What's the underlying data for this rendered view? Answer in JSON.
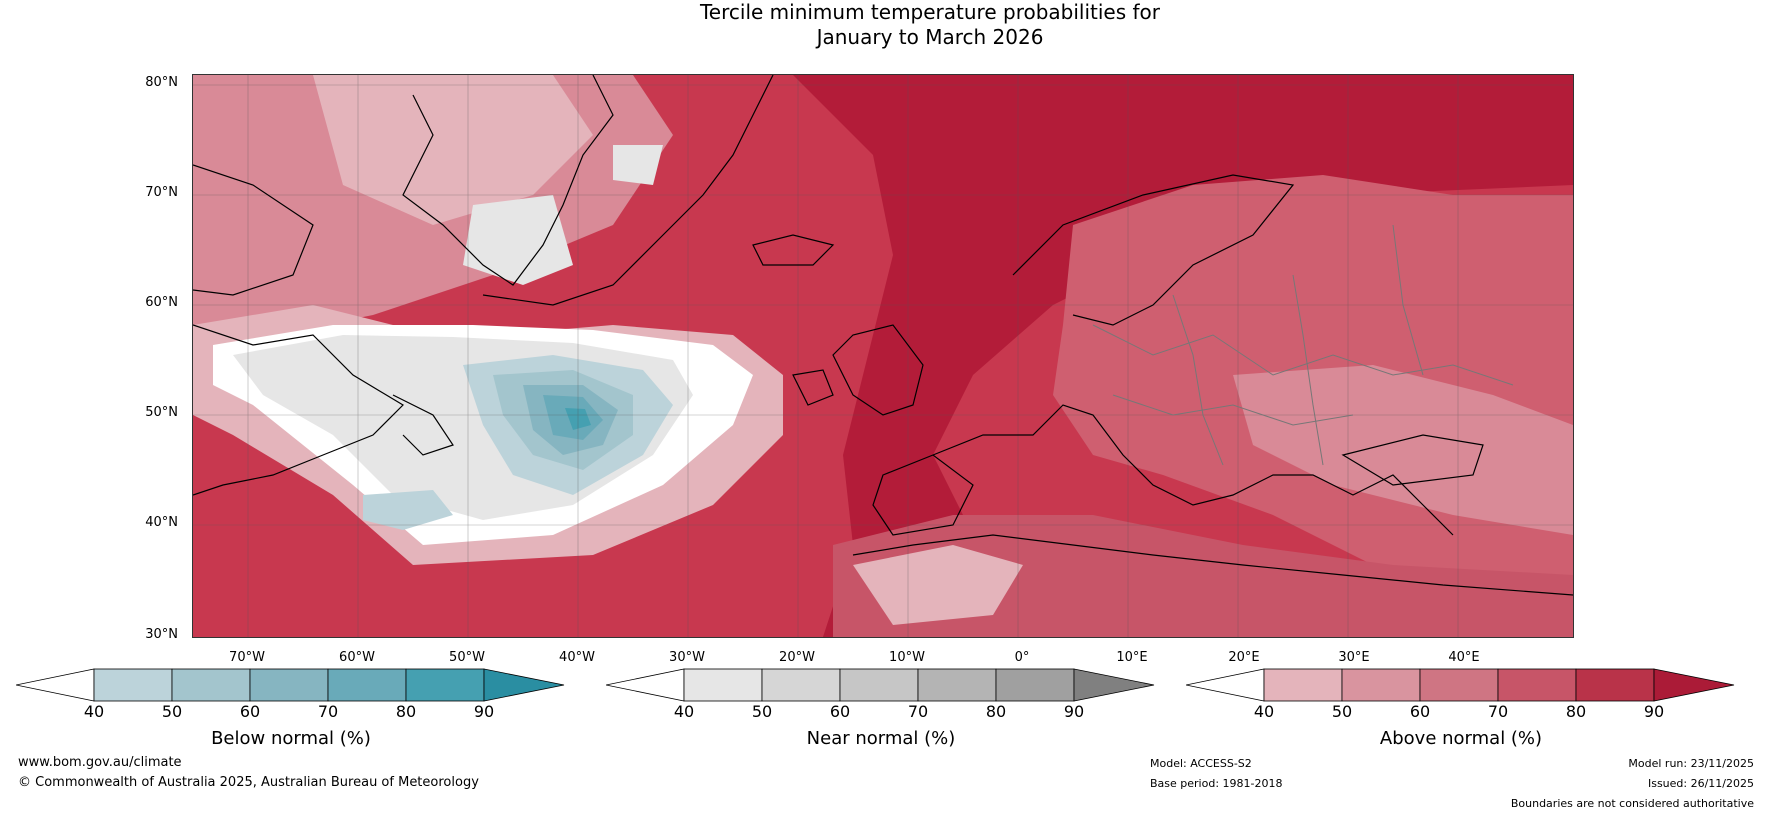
{
  "title_line1": "Tercile minimum temperature probabilities for",
  "title_line2": "January to March 2026",
  "map": {
    "lat_labels": [
      "80°N",
      "70°N",
      "60°N",
      "50°N",
      "40°N",
      "30°N"
    ],
    "lon_labels": [
      "70°W",
      "60°W",
      "50°W",
      "40°W",
      "30°W",
      "20°W",
      "10°W",
      "0°",
      "10°E",
      "20°E",
      "30°E",
      "40°E"
    ],
    "ocean_color": "#c8384f",
    "land_color": "#cf5f70"
  },
  "colorbars": [
    {
      "label": "Below normal (%)",
      "ticks": [
        "40",
        "50",
        "60",
        "70",
        "80",
        "90"
      ],
      "colors": [
        "#bcd3da",
        "#a3c5cd",
        "#86b5c1",
        "#69aab9",
        "#45a0b1"
      ],
      "low_end": "#ffffff",
      "high_end": "#2a8ea2"
    },
    {
      "label": "Near normal (%)",
      "ticks": [
        "40",
        "50",
        "60",
        "70",
        "80",
        "90"
      ],
      "colors": [
        "#e6e6e6",
        "#d6d6d6",
        "#c6c6c6",
        "#b4b4b4",
        "#a0a0a0"
      ],
      "low_end": "#ffffff",
      "high_end": "#808080"
    },
    {
      "label": "Above normal (%)",
      "ticks": [
        "40",
        "50",
        "60",
        "70",
        "80",
        "90"
      ],
      "colors": [
        "#e4b4bb",
        "#d9949f",
        "#cf7583",
        "#c75568",
        "#b93349"
      ],
      "low_end": "#ffffff",
      "high_end": "#ab1b37"
    }
  ],
  "footer": {
    "website": "www.bom.gov.au/climate",
    "copyright": "© Commonwealth of Australia 2025, Australian Bureau of Meteorology",
    "model": "Model: ACCESS-S2",
    "base_period": "Base period: 1981-2018",
    "model_run": "Model run: 23/11/2025",
    "issued": "Issued: 26/11/2025",
    "disclaimer": "Boundaries are not considered authoritative"
  }
}
